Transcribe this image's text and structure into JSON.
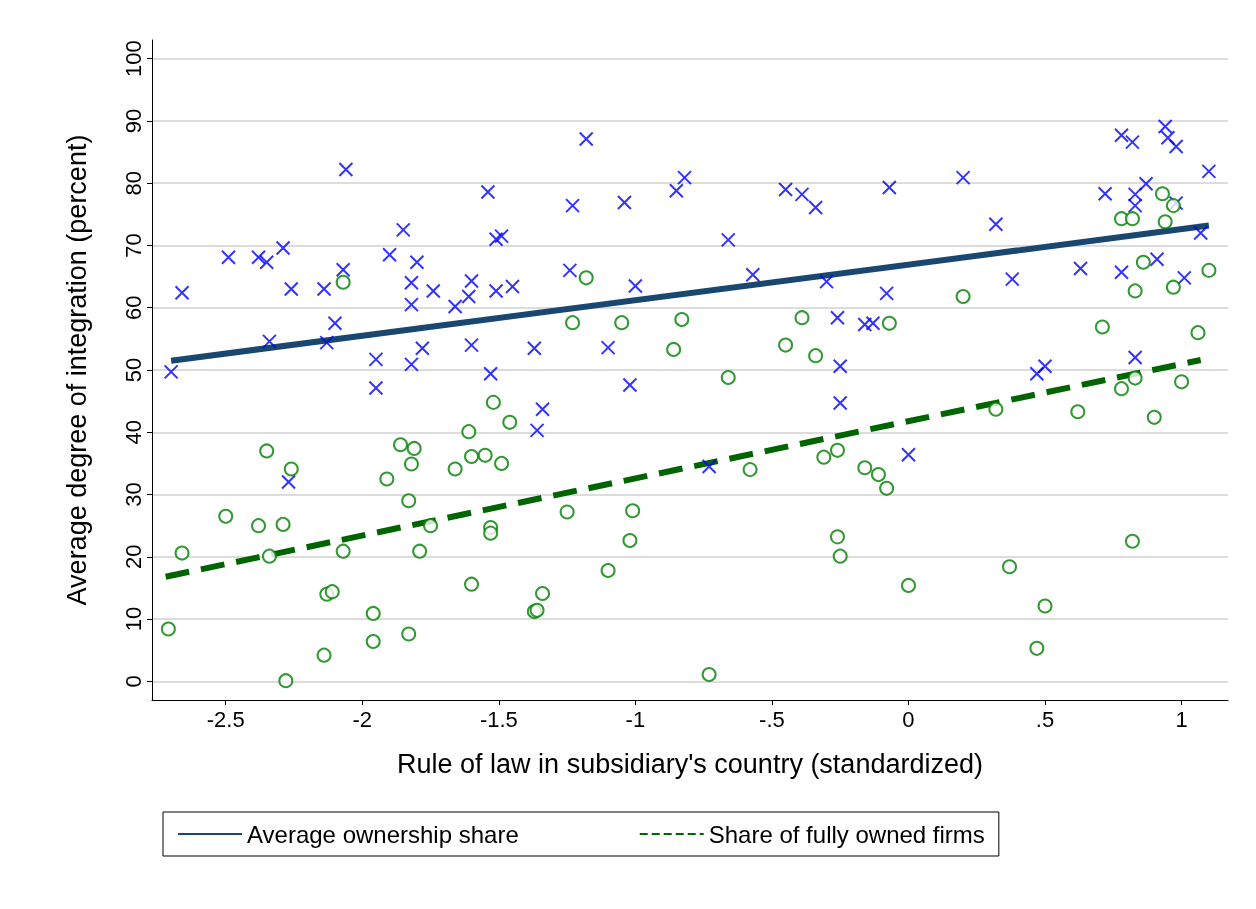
{
  "chart_data": {
    "type": "scatter",
    "xlabel": "Rule of law in subsidiary's country (standardized)",
    "ylabel": "Average degree of integration (percent)",
    "xlim": [
      -2.77,
      1.17
    ],
    "xticks": [
      {
        "value": -2.5,
        "label": "-2.5"
      },
      {
        "value": -2,
        "label": "-2"
      },
      {
        "value": -1.5,
        "label": "-1.5"
      },
      {
        "value": -1,
        "label": "-1"
      },
      {
        "value": -0.5,
        "label": "-.5"
      },
      {
        "value": 0,
        "label": "0"
      },
      {
        "value": 0.5,
        "label": ".5"
      },
      {
        "value": 1,
        "label": "1"
      }
    ],
    "ylim": [
      -3,
      103
    ],
    "yticks": [
      0,
      10,
      20,
      30,
      40,
      50,
      60,
      70,
      80,
      90,
      100
    ],
    "grid": "y",
    "legend": "bottom",
    "series": [
      {
        "color": "#0000ff",
        "marker": "cross",
        "x": [
          -2.7,
          -2.66,
          -2.49,
          -2.38,
          -2.35,
          -2.34,
          -2.29,
          -2.26,
          -2.27,
          -2.14,
          -2.13,
          -2.1,
          -2.07,
          -2.06,
          -1.95,
          -1.95,
          -1.9,
          -1.85,
          -1.82,
          -1.82,
          -1.82,
          -1.8,
          -1.78,
          -1.74,
          -1.66,
          -1.61,
          -1.6,
          -1.6,
          -1.53,
          -1.54,
          -1.51,
          -1.49,
          -1.51,
          -1.45,
          -1.37,
          -1.18,
          -1.23,
          -1.04,
          -0.85,
          -0.82,
          -1.24,
          -1.0,
          -0.66,
          -0.57,
          -0.45,
          -0.39,
          -0.34,
          -0.3,
          -0.07,
          -0.08,
          -0.26,
          -0.16,
          -0.13,
          -0.25,
          -0.25,
          -1.1,
          -1.02,
          -1.34,
          -1.36,
          -0.73,
          0.2,
          0.32,
          0.38,
          0.0,
          0.47,
          0.5,
          0.63,
          0.72,
          0.78,
          0.78,
          0.82,
          0.83,
          0.83,
          0.87,
          0.83,
          0.91,
          0.94,
          0.95,
          0.98,
          0.98,
          1.01,
          1.07,
          1.1
        ],
        "values": [
          49.7,
          62.4,
          68.1,
          68.1,
          67.3,
          54.6,
          69.6,
          63.0,
          32.0,
          63.0,
          54.4,
          57.5,
          66.1,
          82.2,
          51.7,
          47.1,
          68.5,
          72.5,
          60.5,
          64.0,
          50.9,
          67.3,
          53.5,
          62.7,
          60.2,
          61.8,
          64.3,
          54.0,
          49.4,
          78.6,
          71.0,
          71.5,
          62.7,
          63.4,
          53.5,
          87.1,
          76.4,
          76.9,
          78.8,
          80.9,
          66.0,
          63.5,
          70.9,
          65.3,
          79.0,
          78.2,
          76.1,
          64.2,
          79.3,
          62.3,
          58.4,
          57.3,
          57.5,
          50.6,
          44.7,
          53.6,
          47.6,
          43.7,
          40.3,
          34.5,
          80.9,
          73.4,
          64.6,
          36.4,
          49.4,
          50.6,
          66.3,
          78.3,
          65.7,
          87.7,
          86.6,
          78.2,
          76.4,
          79.9,
          52.0,
          67.8,
          89.1,
          87.3,
          85.9,
          76.8,
          64.8,
          72.0,
          81.9
        ]
      },
      {
        "type": "line",
        "name": "Average ownership share",
        "color": "#1a476f",
        "marker": "none",
        "line_style": "solid",
        "x": [
          -2.7,
          1.1
        ],
        "values": [
          51.5,
          73.2
        ]
      },
      {
        "color": "#008000",
        "marker": "circle",
        "x": [
          -2.07,
          -2.71,
          -2.66,
          -2.5,
          -2.38,
          -2.35,
          -2.34,
          -2.29,
          -2.26,
          -2.28,
          -2.14,
          -2.13,
          -2.11,
          -2.07,
          -1.96,
          -1.96,
          -1.91,
          -1.86,
          -1.81,
          -1.82,
          -1.83,
          -1.83,
          -1.79,
          -1.75,
          -1.66,
          -1.61,
          -1.6,
          -1.55,
          -1.49,
          -1.52,
          -1.46,
          -1.53,
          -1.53,
          -1.6,
          -1.18,
          -1.23,
          -1.05,
          -0.83,
          -0.86,
          -0.66,
          -0.39,
          -0.45,
          -0.34,
          -0.07,
          -0.58,
          -0.31,
          -0.26,
          -0.16,
          -0.11,
          -0.08,
          -1.25,
          -1.01,
          -1.02,
          -1.1,
          -0.26,
          -0.25,
          -1.34,
          -1.37,
          -1.36,
          -0.73,
          0.2,
          0.0,
          0.32,
          0.37,
          0.5,
          0.47,
          0.62,
          0.71,
          0.78,
          0.82,
          0.78,
          0.83,
          0.83,
          0.86,
          0.82,
          0.9,
          0.93,
          0.94,
          0.97,
          0.97,
          1.0,
          1.06,
          1.1
        ],
        "values": [
          64.1,
          8.4,
          20.6,
          26.5,
          25.0,
          37.0,
          20.1,
          25.2,
          34.1,
          0.1,
          4.2,
          14.0,
          14.4,
          20.9,
          10.9,
          6.4,
          32.5,
          38.0,
          37.4,
          34.9,
          29.0,
          7.6,
          20.9,
          25.0,
          34.1,
          40.1,
          36.1,
          36.3,
          35.0,
          44.8,
          41.6,
          24.7,
          23.8,
          15.6,
          64.8,
          57.6,
          57.6,
          58.1,
          53.3,
          48.8,
          58.4,
          54.0,
          52.3,
          57.5,
          34.0,
          36.0,
          37.1,
          34.3,
          33.2,
          31.0,
          27.2,
          27.4,
          22.6,
          17.8,
          23.2,
          20.1,
          14.1,
          11.2,
          11.4,
          1.1,
          61.8,
          15.4,
          43.7,
          18.4,
          12.1,
          5.3,
          43.3,
          56.9,
          74.3,
          74.3,
          47.0,
          48.7,
          62.7,
          67.3,
          22.5,
          42.4,
          78.3,
          73.8,
          76.4,
          63.3,
          48.1,
          56.0,
          66.0
        ]
      },
      {
        "type": "line",
        "name": "Share of fully owned firms",
        "color": "#006400",
        "marker": "none",
        "line_style": "dashed",
        "x": [
          -2.72,
          1.07
        ],
        "values": [
          16.8,
          51.6
        ]
      }
    ]
  }
}
